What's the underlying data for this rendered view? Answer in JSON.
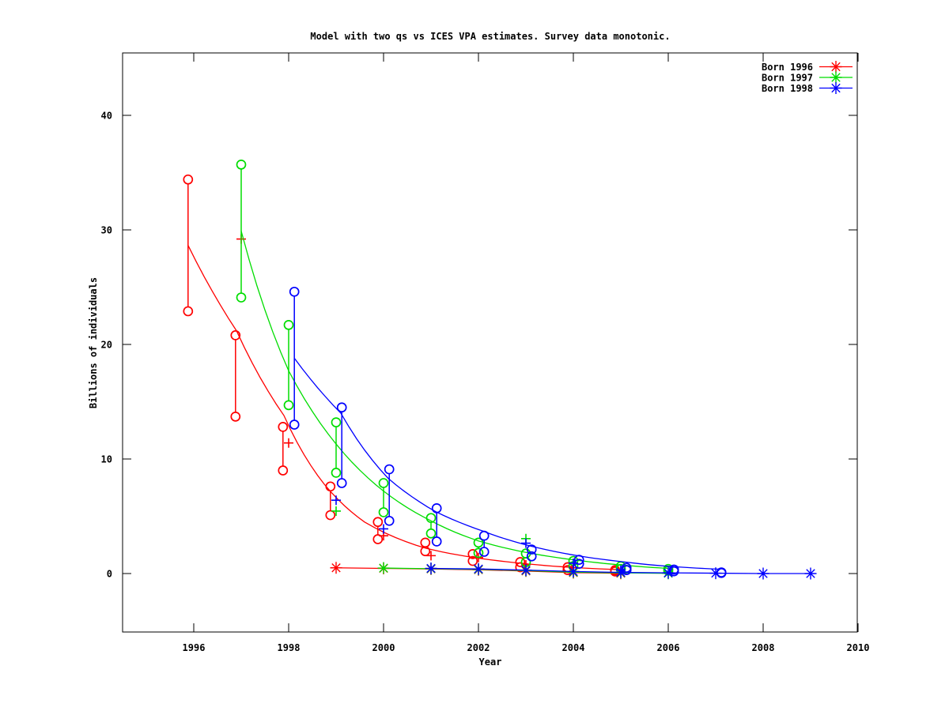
{
  "title": "Model with two qs vs ICES VPA estimates. Survey data monotonic.",
  "axes": {
    "xlabel": "Year",
    "ylabel": "Billions of individuals",
    "x_ticks": [
      1996,
      1998,
      2000,
      2002,
      2004,
      2006,
      2008,
      2010
    ],
    "y_ticks": [
      0,
      10,
      20,
      30,
      40
    ]
  },
  "legend": {
    "position": "top-right",
    "entries": [
      {
        "label": "Born 1996",
        "color": "#ff0000",
        "marker": "star-icon"
      },
      {
        "label": "Born 1997",
        "color": "#00dd00",
        "marker": "star-icon"
      },
      {
        "label": "Born 1998",
        "color": "#0000ff",
        "marker": "star-icon"
      }
    ]
  },
  "chart_data": {
    "type": "line",
    "title": "Model with two qs vs ICES VPA estimates. Survey data monotonic.",
    "xlabel": "Year",
    "ylabel": "Billions of individuals",
    "xlim": [
      1994.5,
      2010
    ],
    "ylim": [
      -5,
      45.5
    ],
    "x_ticks": [
      1996,
      1998,
      2000,
      2002,
      2004,
      2006,
      2008,
      2010
    ],
    "y_ticks": [
      0,
      10,
      20,
      30,
      40
    ],
    "grid": false,
    "legend_position": "top-right-inside",
    "series": [
      {
        "name": "Born 1996",
        "color": "#ff0000",
        "model_curve": [
          [
            1995.88,
            28.65
          ],
          [
            1996.9,
            21.2
          ],
          [
            1997.9,
            13.8
          ],
          [
            1998.75,
            7.8
          ],
          [
            1999.6,
            4.5
          ],
          [
            2000.9,
            2.2
          ],
          [
            2001.9,
            1.4
          ],
          [
            2002.9,
            0.9
          ],
          [
            2003.9,
            0.55
          ],
          [
            2004.9,
            0.35
          ]
        ],
        "survey_pairs": [
          [
            1996,
            34.4,
            22.9
          ],
          [
            1997,
            20.8,
            13.7
          ],
          [
            1998,
            12.8,
            9.0
          ],
          [
            1999,
            7.6,
            5.1
          ],
          [
            2000,
            4.5,
            3.0
          ],
          [
            2001,
            2.7,
            1.95
          ],
          [
            2002,
            1.7,
            1.1
          ],
          [
            2003,
            1.0,
            0.55
          ],
          [
            2004,
            0.55,
            0.3
          ],
          [
            2005,
            0.3,
            0.18
          ]
        ],
        "survey_x_offset": -0.12,
        "vpa_estimates": [
          [
            1997,
            29.2
          ],
          [
            1998,
            11.4
          ],
          [
            2000,
            3.3
          ],
          [
            2001,
            1.56
          ],
          [
            2002,
            1.4
          ],
          [
            2003,
            0.76
          ],
          [
            2004,
            0.5
          ]
        ],
        "star_series": [
          [
            1999,
            0.5
          ],
          [
            2000,
            0.45
          ],
          [
            2001,
            0.4
          ],
          [
            2002,
            0.33
          ],
          [
            2003,
            0.22
          ],
          [
            2004,
            0.08
          ],
          [
            2005,
            0.02
          ]
        ]
      },
      {
        "name": "Born 1997",
        "color": "#00dd00",
        "model_curve": [
          [
            1997,
            29.9
          ],
          [
            1998,
            17.7
          ],
          [
            1999,
            11.3
          ],
          [
            2000,
            7.2
          ],
          [
            2001,
            4.6
          ],
          [
            2002,
            2.85
          ],
          [
            2003,
            1.85
          ],
          [
            2004,
            1.2
          ],
          [
            2005,
            0.75
          ],
          [
            2006,
            0.45
          ]
        ],
        "survey_pairs": [
          [
            1997,
            35.7,
            24.1
          ],
          [
            1998,
            21.7,
            14.7
          ],
          [
            1999,
            13.2,
            8.8
          ],
          [
            2000,
            7.9,
            5.35
          ],
          [
            2001,
            4.85,
            3.5
          ],
          [
            2002,
            2.7,
            1.8
          ],
          [
            2003,
            1.75,
            1.0
          ],
          [
            2004,
            1.1,
            0.65
          ],
          [
            2005,
            0.64,
            0.4
          ],
          [
            2006,
            0.4,
            0.25
          ]
        ],
        "survey_x_offset": 0,
        "vpa_estimates": [
          [
            1999,
            5.45
          ],
          [
            2003,
            3.05
          ]
        ],
        "star_series": [
          [
            2000,
            0.48
          ],
          [
            2001,
            0.42
          ],
          [
            2002,
            0.36
          ],
          [
            2003,
            0.26
          ],
          [
            2004,
            0.12
          ],
          [
            2005,
            0.06
          ],
          [
            2006,
            0.02
          ]
        ]
      },
      {
        "name": "Born 1998",
        "color": "#0000ff",
        "model_curve": [
          [
            1998.12,
            18.8
          ],
          [
            1999.1,
            14.0
          ],
          [
            2000.1,
            8.3
          ],
          [
            2001.1,
            5.4
          ],
          [
            2002.1,
            3.7
          ],
          [
            2003.1,
            2.4
          ],
          [
            2004.1,
            1.55
          ],
          [
            2005.1,
            1.0
          ],
          [
            2006.1,
            0.6
          ],
          [
            2007.1,
            0.38
          ]
        ],
        "survey_pairs": [
          [
            1998,
            24.6,
            13.0
          ],
          [
            1999,
            14.5,
            7.9
          ],
          [
            2000,
            9.1,
            4.6
          ],
          [
            2001,
            5.7,
            2.8
          ],
          [
            2002,
            3.3,
            1.9
          ],
          [
            2003,
            2.1,
            1.5
          ],
          [
            2004,
            1.2,
            0.85
          ],
          [
            2005,
            0.5,
            0.3
          ],
          [
            2006,
            0.35,
            0.2
          ],
          [
            2007,
            0.1,
            0.05
          ]
        ],
        "survey_x_offset": 0.12,
        "vpa_estimates": [
          [
            1999,
            6.4
          ],
          [
            2000,
            3.9
          ],
          [
            2003,
            2.65
          ],
          [
            2004,
            0.9
          ],
          [
            2005,
            0.3
          ]
        ],
        "star_series": [
          [
            2001,
            0.45
          ],
          [
            2002,
            0.4
          ],
          [
            2003,
            0.3
          ],
          [
            2004,
            0.18
          ],
          [
            2005,
            0.1
          ],
          [
            2006,
            0.06
          ],
          [
            2007,
            0.03
          ],
          [
            2008,
            0.0
          ],
          [
            2009,
            0.0
          ]
        ]
      }
    ]
  }
}
